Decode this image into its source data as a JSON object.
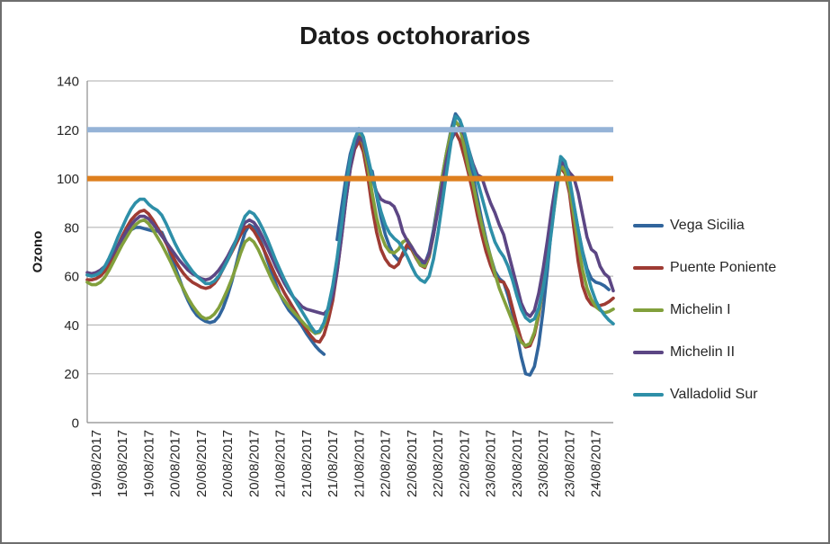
{
  "window": {
    "background": "#FFFFFF",
    "border_color": "#6E6E6E"
  },
  "chart_data": {
    "type": "line",
    "title": "Datos octohorarios",
    "ylabel": "Ozono",
    "ylim": [
      0,
      140
    ],
    "yticks": [
      0,
      20,
      40,
      60,
      80,
      100,
      120,
      140
    ],
    "grid": true,
    "legend_position": "right",
    "n_points": 121,
    "x_tick_indices": [
      2,
      8,
      14,
      20,
      26,
      32,
      38,
      44,
      50,
      56,
      62,
      68,
      74,
      80,
      86,
      92,
      98,
      104,
      110,
      116
    ],
    "x_tick_labels": [
      "19/08/2017",
      "19/08/2017",
      "19/08/2017",
      "20/08/2017",
      "20/08/2017",
      "20/08/2017",
      "20/08/2017",
      "21/08/2017",
      "21/08/2017",
      "21/08/2017",
      "21/08/2017",
      "22/08/2017",
      "22/08/2017",
      "22/08/2017",
      "22/08/2017",
      "23/08/2017",
      "23/08/2017",
      "23/08/2017",
      "23/08/2017",
      "24/08/2017"
    ],
    "reference_lines": [
      {
        "value": 120,
        "color": "#95B3D7"
      },
      {
        "value": 100,
        "color": "#DE7F1E"
      }
    ],
    "series": [
      {
        "name": "Vega Sicilia",
        "color": "#31659C",
        "values": [
          60.5,
          60.5,
          61,
          62,
          64,
          66.5,
          69.5,
          72.5,
          75,
          77.5,
          79,
          80,
          80,
          79.5,
          79,
          78.5,
          78.5,
          78,
          74,
          69,
          64,
          59,
          54,
          50,
          46.5,
          44,
          42.5,
          41.5,
          41,
          41.5,
          43.5,
          47,
          52,
          58,
          65,
          72,
          78,
          81,
          80,
          77,
          72.5,
          67,
          62,
          57,
          52.5,
          49,
          46,
          44,
          42,
          39.5,
          36.5,
          34,
          31.5,
          29.5,
          28,
          null,
          null,
          75,
          88,
          100,
          110,
          116,
          118.5,
          111,
          104.5,
          103,
          93,
          84,
          77,
          72,
          68.5,
          66.5,
          68.5,
          72,
          71,
          68.5,
          66,
          65,
          70,
          79,
          90,
          101,
          111,
          120,
          126.5,
          124,
          117,
          108,
          101,
          92,
          83,
          75,
          68,
          62,
          59,
          57.5,
          52,
          45,
          36,
          27,
          20,
          19.5,
          23,
          32,
          46,
          63,
          82,
          99,
          108,
          105.5,
          99,
          89,
          79,
          70,
          63,
          59,
          57.5,
          57,
          56,
          54.5,
          null
        ]
      },
      {
        "name": "Puente Poniente",
        "color": "#9E3B33",
        "values": [
          58.5,
          58.5,
          59,
          60,
          62,
          65,
          68.5,
          72.5,
          76.5,
          80,
          83,
          85,
          86.5,
          87,
          85.5,
          83,
          80,
          77,
          73.5,
          70,
          66.5,
          63.5,
          61,
          59,
          57.5,
          56.5,
          55.5,
          55,
          55.5,
          57,
          59.5,
          63,
          66.5,
          70,
          73.5,
          77,
          80,
          80.5,
          78.5,
          75.5,
          72,
          68,
          64,
          60,
          56.5,
          53,
          50,
          47,
          44,
          41,
          38,
          35.5,
          33.5,
          33,
          36,
          42,
          50,
          62,
          76,
          91,
          104,
          112,
          115.5,
          111,
          101,
          88,
          78,
          71,
          67,
          64.5,
          63.5,
          65,
          69.5,
          73,
          71,
          67.5,
          64.5,
          63.5,
          68,
          77,
          88,
          100,
          110,
          117,
          119,
          115.5,
          109,
          102,
          94,
          85,
          77,
          70,
          64.5,
          60,
          58,
          57.5,
          54,
          47,
          40,
          34,
          31,
          31.5,
          36,
          44,
          56,
          70,
          85,
          98,
          104.5,
          102,
          94,
          80,
          66,
          56,
          51,
          48.5,
          47.5,
          48,
          48.5,
          49.5,
          51
        ]
      },
      {
        "name": "Michelin I",
        "color": "#82A03C",
        "values": [
          57.5,
          56.5,
          56.5,
          57.5,
          59.5,
          62.5,
          66,
          69.5,
          73,
          76,
          79,
          81,
          82.5,
          83,
          81.5,
          79,
          76,
          73,
          69.5,
          66,
          62,
          58,
          54.5,
          51,
          48,
          45.5,
          43.5,
          42.5,
          43,
          44.5,
          47,
          50.5,
          54.5,
          59,
          64,
          69.5,
          74,
          75.5,
          74,
          71,
          67,
          63,
          59,
          55.5,
          52.5,
          50,
          47.5,
          45.5,
          43.5,
          41.5,
          39.5,
          38,
          36.5,
          37,
          40,
          46,
          54,
          65,
          78,
          93,
          106,
          114.5,
          118,
          114,
          105,
          94,
          84,
          77,
          72.5,
          70,
          69.5,
          71,
          74,
          75,
          72,
          68,
          64.5,
          64,
          68.5,
          77,
          89,
          101,
          111,
          119,
          123.5,
          121,
          113,
          104,
          98,
          89,
          81,
          74,
          68,
          61,
          55,
          50.5,
          46,
          41.5,
          36.5,
          33,
          31.5,
          32.5,
          37,
          45,
          56,
          68,
          81,
          94,
          105.5,
          103,
          96,
          85,
          73,
          62.5,
          55,
          50.5,
          47.5,
          46,
          45,
          45.5,
          46.5
        ]
      },
      {
        "name": "Michelin II",
        "color": "#5C4684",
        "values": [
          61.5,
          61,
          61.5,
          62.5,
          64,
          66.5,
          69.5,
          72.5,
          75.5,
          78.5,
          81,
          83,
          84.5,
          84.5,
          83.5,
          81.5,
          79,
          76.5,
          74,
          71.5,
          69,
          66.5,
          64.5,
          62.5,
          61,
          60,
          59,
          58.5,
          59,
          60.5,
          62.5,
          65,
          68,
          71.5,
          75,
          79,
          82,
          83,
          82,
          79.5,
          76,
          72,
          68,
          64,
          60.5,
          57,
          54,
          51.5,
          49.5,
          47.5,
          46.5,
          46,
          45.5,
          45,
          44.5,
          46.5,
          52,
          62,
          76,
          91,
          104,
          113,
          117,
          115,
          108,
          100,
          94.5,
          91.5,
          90.5,
          90,
          88.5,
          84.5,
          78,
          74.5,
          72,
          69,
          67,
          65.5,
          69,
          77,
          87,
          98,
          108,
          115.5,
          119.5,
          121,
          118,
          112,
          106,
          101.5,
          100.5,
          95,
          90,
          86,
          81,
          77,
          70,
          63,
          56,
          49,
          45,
          43.5,
          46,
          53,
          63,
          75,
          88,
          99,
          106.5,
          105.5,
          102.5,
          100.5,
          94,
          85,
          76,
          71,
          69.5,
          64,
          61,
          59.5,
          54
        ]
      },
      {
        "name": "Valladolid Sur",
        "color": "#2E8FA8",
        "values": [
          60.5,
          60,
          60.5,
          61.5,
          64,
          67.5,
          71.5,
          76,
          80,
          84,
          87.5,
          90,
          91.5,
          91.5,
          89.5,
          88,
          87,
          85,
          81.5,
          77.5,
          73.5,
          70,
          67,
          64.5,
          62,
          60,
          58.5,
          57,
          57,
          58,
          60,
          63,
          66.5,
          70.5,
          75,
          80,
          84.5,
          86.5,
          85.5,
          83,
          79.5,
          75.5,
          71,
          66.5,
          62.5,
          58.5,
          55,
          51.5,
          48.5,
          45.5,
          42.5,
          39.5,
          37,
          37.5,
          41,
          47.5,
          56,
          67.5,
          81,
          96,
          108,
          116,
          120.5,
          117,
          109,
          101,
          93.5,
          86.5,
          81,
          77.5,
          75.5,
          74,
          71.5,
          68,
          64,
          60.5,
          58.5,
          57.5,
          60,
          67,
          77.5,
          90,
          103,
          115,
          125.5,
          124,
          119,
          112,
          105,
          99,
          92.5,
          86,
          79.5,
          74,
          70.5,
          68,
          64,
          58.5,
          52,
          46.5,
          43,
          41.5,
          42.5,
          47,
          55,
          66,
          80,
          95,
          109,
          107,
          100,
          89.5,
          79,
          69.5,
          61.5,
          55,
          50,
          46.5,
          44,
          42,
          40.5
        ]
      }
    ]
  }
}
